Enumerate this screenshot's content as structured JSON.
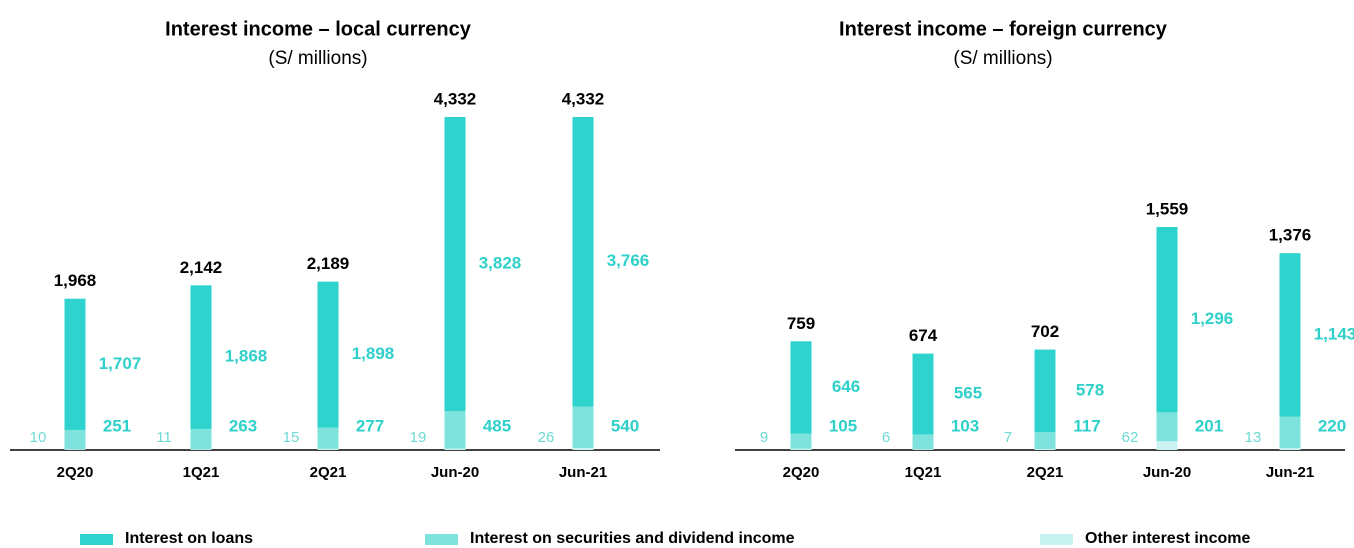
{
  "chart_data": [
    {
      "type": "bar",
      "title": "Interest income – local currency",
      "subtitle": "(S/ millions)",
      "categories": [
        "2Q20",
        "1Q21",
        "2Q21",
        "Jun-20",
        "Jun-21"
      ],
      "series": [
        {
          "name": "Interest on loans",
          "color": "#2dd3cc",
          "values": [
            1707,
            1868,
            1898,
            3828,
            3766
          ],
          "value_labels": [
            "1,707",
            "1,868",
            "1,898",
            "3,828",
            "3,766"
          ]
        },
        {
          "name": "Interest on securities and dividend income",
          "color": "#7fe3dd",
          "values": [
            251,
            263,
            277,
            485,
            540
          ]
        },
        {
          "name": "Other interest income",
          "color": "#c9f3f1",
          "values": [
            10,
            11,
            15,
            19,
            26
          ]
        }
      ],
      "totals": [
        1968,
        2142,
        2189,
        4332,
        4332
      ],
      "total_labels": [
        "1,968",
        "2,142",
        "2,189",
        "4,332",
        "4,332"
      ]
    },
    {
      "type": "bar",
      "title": "Interest income – foreign currency",
      "subtitle": "(S/ millions)",
      "categories": [
        "2Q20",
        "1Q21",
        "2Q21",
        "Jun-20",
        "Jun-21"
      ],
      "series": [
        {
          "color": "#2dd3cc",
          "values": [
            646,
            565,
            578,
            1296,
            1143
          ],
          "value_labels": [
            "646",
            "565",
            "578",
            "1,296",
            "1,143"
          ]
        },
        {
          "color": "#7fe3dd",
          "values": [
            105,
            103,
            117,
            201,
            220
          ]
        },
        {
          "color": "#c9f3f1",
          "values": [
            9,
            6,
            7,
            62,
            13
          ]
        }
      ],
      "totals": [
        759,
        674,
        702,
        1559,
        1376
      ],
      "total_labels": [
        "759",
        "674",
        "702",
        "1,559",
        "1,376"
      ]
    }
  ]
}
